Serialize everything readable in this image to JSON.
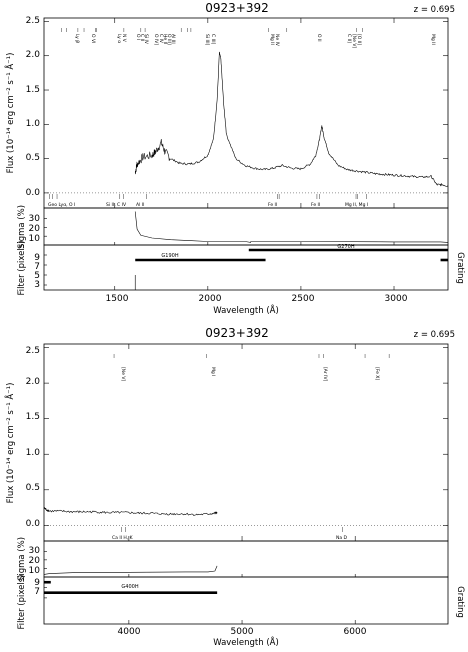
{
  "chart_data": [
    {
      "type": "line",
      "title": "0923+392",
      "redshift_label": "z = 0.695",
      "xlabel": "Wavelength (Å)",
      "ylabel": "Flux (10⁻¹⁴ erg cm⁻² s⁻¹ Å⁻¹)",
      "xlim": [
        1120,
        3290
      ],
      "ylim": [
        -0.22,
        2.55
      ],
      "xticks": [
        "1500",
        "2000",
        "2500",
        "3000"
      ],
      "yticks": [
        "0.0",
        "0.5",
        "1.0",
        "1.5",
        "2.0",
        "2.5"
      ],
      "spectrum": {
        "x": [
          1610,
          1620,
          1650,
          1700,
          1720,
          1750,
          1770,
          1800,
          1850,
          1900,
          1950,
          2000,
          2030,
          2050,
          2062,
          2070,
          2085,
          2100,
          2150,
          2200,
          2250,
          2300,
          2350,
          2400,
          2450,
          2500,
          2550,
          2580,
          2600,
          2612,
          2625,
          2650,
          2700,
          2750,
          2800,
          2850,
          2900,
          2950,
          3000,
          3050,
          3100,
          3150,
          3200,
          3230,
          3260,
          3290
        ],
        "y": [
          0.3,
          0.42,
          0.52,
          0.55,
          0.6,
          0.73,
          0.6,
          0.5,
          0.43,
          0.42,
          0.45,
          0.55,
          0.78,
          1.35,
          2.05,
          1.95,
          1.3,
          0.85,
          0.5,
          0.4,
          0.36,
          0.34,
          0.36,
          0.4,
          0.36,
          0.35,
          0.42,
          0.55,
          0.78,
          0.98,
          0.8,
          0.58,
          0.4,
          0.34,
          0.32,
          0.3,
          0.28,
          0.27,
          0.26,
          0.25,
          0.24,
          0.23,
          0.24,
          0.12,
          0.12,
          0.1
        ]
      },
      "emission_labels": [
        "Ly β",
        "O VI",
        "Ly α",
        "N V",
        "O I",
        "C II",
        "Si IV",
        "O IV]",
        "C IV",
        "He II",
        "O III]",
        "Al III",
        "Si III]",
        "C III]",
        "Mg II",
        "Ne IV",
        "O II",
        "C II]",
        "[Ne V]",
        "[O II]",
        "Mg II"
      ],
      "absorption_labels": [
        "Geo Lyα, O I",
        "Si II, C IV",
        "Al II",
        "Fe II",
        "Fe II",
        "Mg II, Mg I"
      ],
      "sigma_panel": {
        "ylabel": "Sigma (%)",
        "yticks": [
          "10",
          "20",
          "30"
        ],
        "x": [
          1610,
          1620,
          1640,
          1700,
          1800,
          1900,
          2000,
          2100,
          2200,
          2230,
          2231,
          2500,
          3000,
          3250,
          3290
        ],
        "y": [
          38,
          18,
          11,
          8,
          6,
          5,
          4,
          4,
          4,
          3,
          4,
          4,
          3.5,
          3.5,
          3
        ]
      },
      "filter_panel": {
        "ylabel": "Filter (pixels)",
        "right_label": "Grating",
        "yticks": [
          "3",
          "5",
          "7",
          "9"
        ],
        "gratings": [
          {
            "name": "G190H",
            "start": 1610,
            "end": 2310,
            "level": 8
          },
          {
            "name": "G270H",
            "start": 2220,
            "end": 3290,
            "level": 10
          },
          {
            "name": "",
            "start": 3250,
            "end": 3290,
            "level": 8
          }
        ],
        "filter_mark": {
          "x": 1610,
          "from": 2,
          "to": 5
        }
      }
    },
    {
      "type": "line",
      "title": "0923+392",
      "redshift_label": "z = 0.695",
      "xlabel": "Wavelength (Å)",
      "ylabel": "Flux (10⁻¹⁴ erg cm⁻² s⁻¹ Å⁻¹)",
      "xlim": [
        3250,
        6820
      ],
      "ylim": [
        -0.22,
        2.55
      ],
      "xticks": [
        "4000",
        "5000",
        "6000"
      ],
      "yticks": [
        "0.0",
        "0.5",
        "1.0",
        "1.5",
        "2.0",
        "2.5"
      ],
      "spectrum": {
        "x": [
          3250,
          3270,
          3300,
          3400,
          3500,
          3600,
          3700,
          3800,
          3900,
          4000,
          4100,
          4200,
          4300,
          4400,
          4500,
          4600,
          4700,
          4760,
          4780
        ],
        "y": [
          0.25,
          0.22,
          0.2,
          0.2,
          0.19,
          0.19,
          0.19,
          0.18,
          0.18,
          0.18,
          0.17,
          0.17,
          0.16,
          0.16,
          0.16,
          0.15,
          0.16,
          0.17,
          0.18
        ]
      },
      "emission_labels": [
        "[Ne V]",
        "Mg I",
        "[Ar IV]",
        "[Fe X]"
      ],
      "absorption_labels": [
        "Ca II H, K",
        "Na D"
      ],
      "sigma_panel": {
        "ylabel": "Sigma (%)",
        "yticks": [
          "10",
          "20",
          "30"
        ],
        "x": [
          3250,
          3300,
          3500,
          4000,
          4500,
          4700,
          4760,
          4780
        ],
        "y": [
          3,
          4,
          5,
          5.5,
          6,
          6,
          7,
          13
        ]
      },
      "filter_panel": {
        "ylabel": "Filter (pixels)",
        "right_label": "Grating",
        "yticks": [
          "7",
          "9"
        ],
        "gratings": [
          {
            "name": "G400H",
            "start": 3250,
            "end": 4780,
            "level": 8
          },
          {
            "name": "",
            "start": 3250,
            "end": 3310,
            "level": 10
          }
        ]
      }
    }
  ]
}
